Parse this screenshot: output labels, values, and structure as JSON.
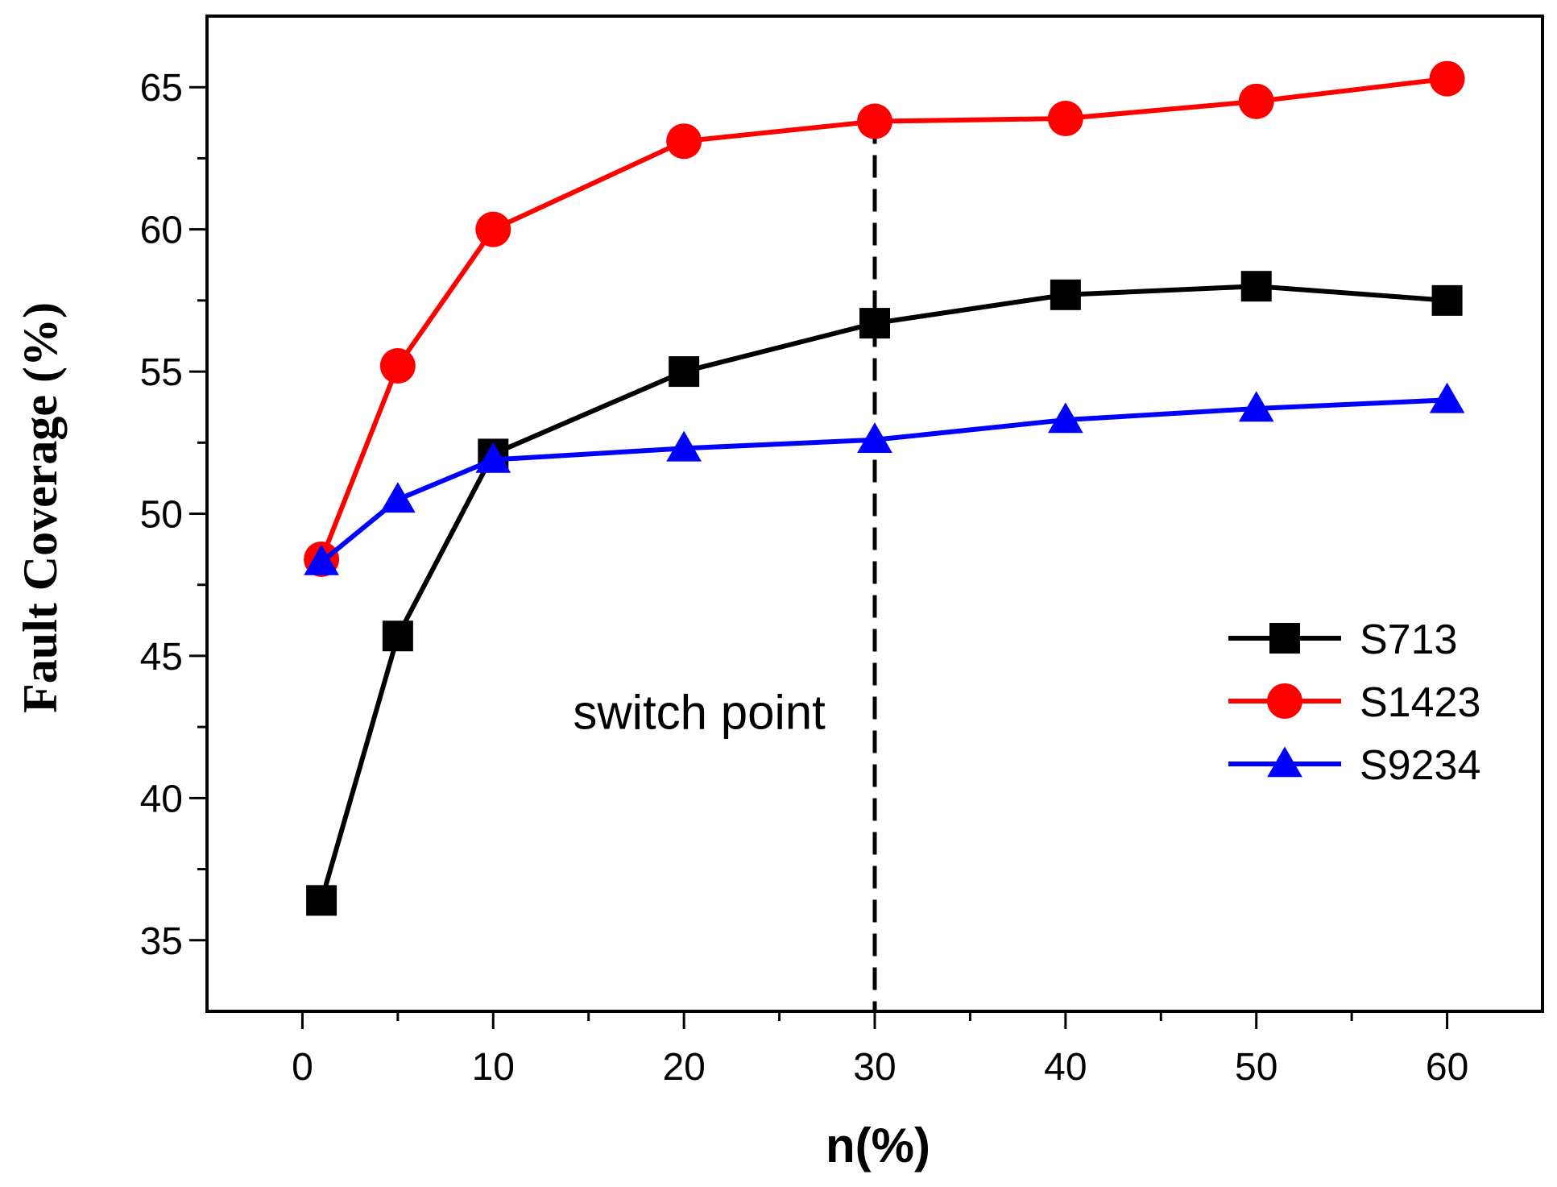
{
  "chart_data": {
    "type": "line",
    "title": "",
    "xlabel": "n(%)",
    "ylabel": "Fault Coverage (%)",
    "xlim": [
      -5,
      65
    ],
    "ylim": [
      32.5,
      67.5
    ],
    "x_ticks": [
      0,
      10,
      20,
      30,
      40,
      50,
      60
    ],
    "x_minor_ticks": [
      5,
      15,
      25,
      35,
      45,
      55
    ],
    "y_ticks": [
      35,
      40,
      45,
      50,
      55,
      60,
      65
    ],
    "y_minor_ticks": [
      37.5,
      42.5,
      47.5,
      52.5,
      57.5,
      62.5
    ],
    "x_tick_labels": [
      "0",
      "10",
      "20",
      "30",
      "40",
      "50",
      "60"
    ],
    "y_tick_labels": [
      "35",
      "40",
      "45",
      "50",
      "55",
      "60",
      "65"
    ],
    "x": [
      1,
      5,
      10,
      20,
      30,
      40,
      50,
      60
    ],
    "series": [
      {
        "name": "S713",
        "color": "#000000",
        "marker": "square",
        "values": [
          36.4,
          45.7,
          52.1,
          55.0,
          56.7,
          57.7,
          58.0,
          57.5
        ]
      },
      {
        "name": "S1423",
        "color": "#ff0000",
        "marker": "circle",
        "values": [
          48.4,
          55.2,
          60.0,
          63.1,
          63.8,
          63.9,
          64.5,
          65.3
        ]
      },
      {
        "name": "S9234",
        "color": "#0000ff",
        "marker": "triangle",
        "values": [
          48.3,
          50.5,
          51.9,
          52.3,
          52.6,
          53.3,
          53.7,
          54.0
        ]
      }
    ],
    "reference_line": {
      "x": 30,
      "y_top": 63.8,
      "style": "dashed"
    },
    "annotation": {
      "text": "switch point",
      "x": 20.8,
      "y": 43.0
    },
    "legend_position": "right"
  }
}
